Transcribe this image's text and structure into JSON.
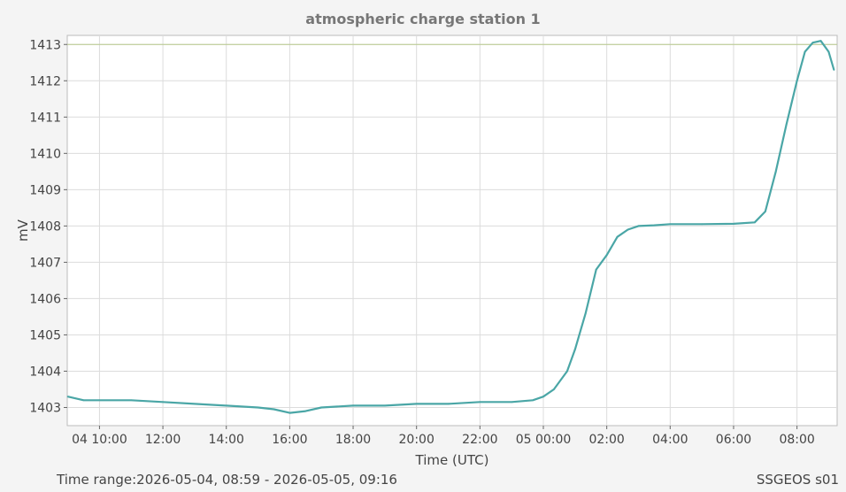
{
  "footer": {
    "time_range": "Time range:2026-05-04, 08:59 - 2026-05-05, 09:16",
    "source": "SSGEOS s01"
  },
  "colors": {
    "series": "#4aa6a6",
    "reference_line": "#b8c98c",
    "grid": "#dcdcdc",
    "background": "#ffffff"
  },
  "chart_data": {
    "type": "line",
    "title": "atmospheric charge station 1",
    "xlabel": "Time (UTC)",
    "ylabel": "mV",
    "ylim": [
      1402.5,
      1413.25
    ],
    "yticks": [
      1403,
      1404,
      1405,
      1406,
      1407,
      1408,
      1409,
      1410,
      1411,
      1412,
      1413
    ],
    "xticks": [
      {
        "t": "2026-05-04T10:00",
        "label": "04 10:00"
      },
      {
        "t": "2026-05-04T12:00",
        "label": "12:00"
      },
      {
        "t": "2026-05-04T14:00",
        "label": "14:00"
      },
      {
        "t": "2026-05-04T16:00",
        "label": "16:00"
      },
      {
        "t": "2026-05-04T18:00",
        "label": "18:00"
      },
      {
        "t": "2026-05-04T20:00",
        "label": "20:00"
      },
      {
        "t": "2026-05-04T22:00",
        "label": "22:00"
      },
      {
        "t": "2026-05-05T00:00",
        "label": "05 00:00"
      },
      {
        "t": "2026-05-05T02:00",
        "label": "02:00"
      },
      {
        "t": "2026-05-05T04:00",
        "label": "04:00"
      },
      {
        "t": "2026-05-05T06:00",
        "label": "06:00"
      },
      {
        "t": "2026-05-05T08:00",
        "label": "08:00"
      }
    ],
    "xlim": [
      "2026-05-04T08:59",
      "2026-05-05T09:16"
    ],
    "grid": true,
    "reference_line": 1413,
    "series": [
      {
        "x": [
          "2026-05-04T09:00",
          "2026-05-04T09:30",
          "2026-05-04T10:00",
          "2026-05-04T11:00",
          "2026-05-04T12:00",
          "2026-05-04T13:00",
          "2026-05-04T14:00",
          "2026-05-04T15:00",
          "2026-05-04T15:30",
          "2026-05-04T16:00",
          "2026-05-04T16:30",
          "2026-05-04T17:00",
          "2026-05-04T18:00",
          "2026-05-04T19:00",
          "2026-05-04T20:00",
          "2026-05-04T21:00",
          "2026-05-04T22:00",
          "2026-05-04T23:00",
          "2026-05-04T23:40",
          "2026-05-05T00:00",
          "2026-05-05T00:20",
          "2026-05-05T00:45",
          "2026-05-05T01:00",
          "2026-05-05T01:20",
          "2026-05-05T01:40",
          "2026-05-05T02:00",
          "2026-05-05T02:20",
          "2026-05-05T02:40",
          "2026-05-05T03:00",
          "2026-05-05T03:30",
          "2026-05-05T04:00",
          "2026-05-05T05:00",
          "2026-05-05T06:00",
          "2026-05-05T06:40",
          "2026-05-05T07:00",
          "2026-05-05T07:20",
          "2026-05-05T07:40",
          "2026-05-05T08:00",
          "2026-05-05T08:15",
          "2026-05-05T08:30",
          "2026-05-05T08:45",
          "2026-05-05T09:00",
          "2026-05-05T09:10"
        ],
        "values": [
          1403.3,
          1403.2,
          1403.2,
          1403.2,
          1403.15,
          1403.1,
          1403.05,
          1403.0,
          1402.95,
          1402.85,
          1402.9,
          1403.0,
          1403.05,
          1403.05,
          1403.1,
          1403.1,
          1403.15,
          1403.15,
          1403.2,
          1403.3,
          1403.5,
          1404.0,
          1404.6,
          1405.6,
          1406.8,
          1407.2,
          1407.7,
          1407.9,
          1408.0,
          1408.02,
          1408.05,
          1408.05,
          1408.06,
          1408.1,
          1408.4,
          1409.5,
          1410.8,
          1412.0,
          1412.8,
          1413.05,
          1413.1,
          1412.8,
          1412.3
        ]
      }
    ]
  }
}
